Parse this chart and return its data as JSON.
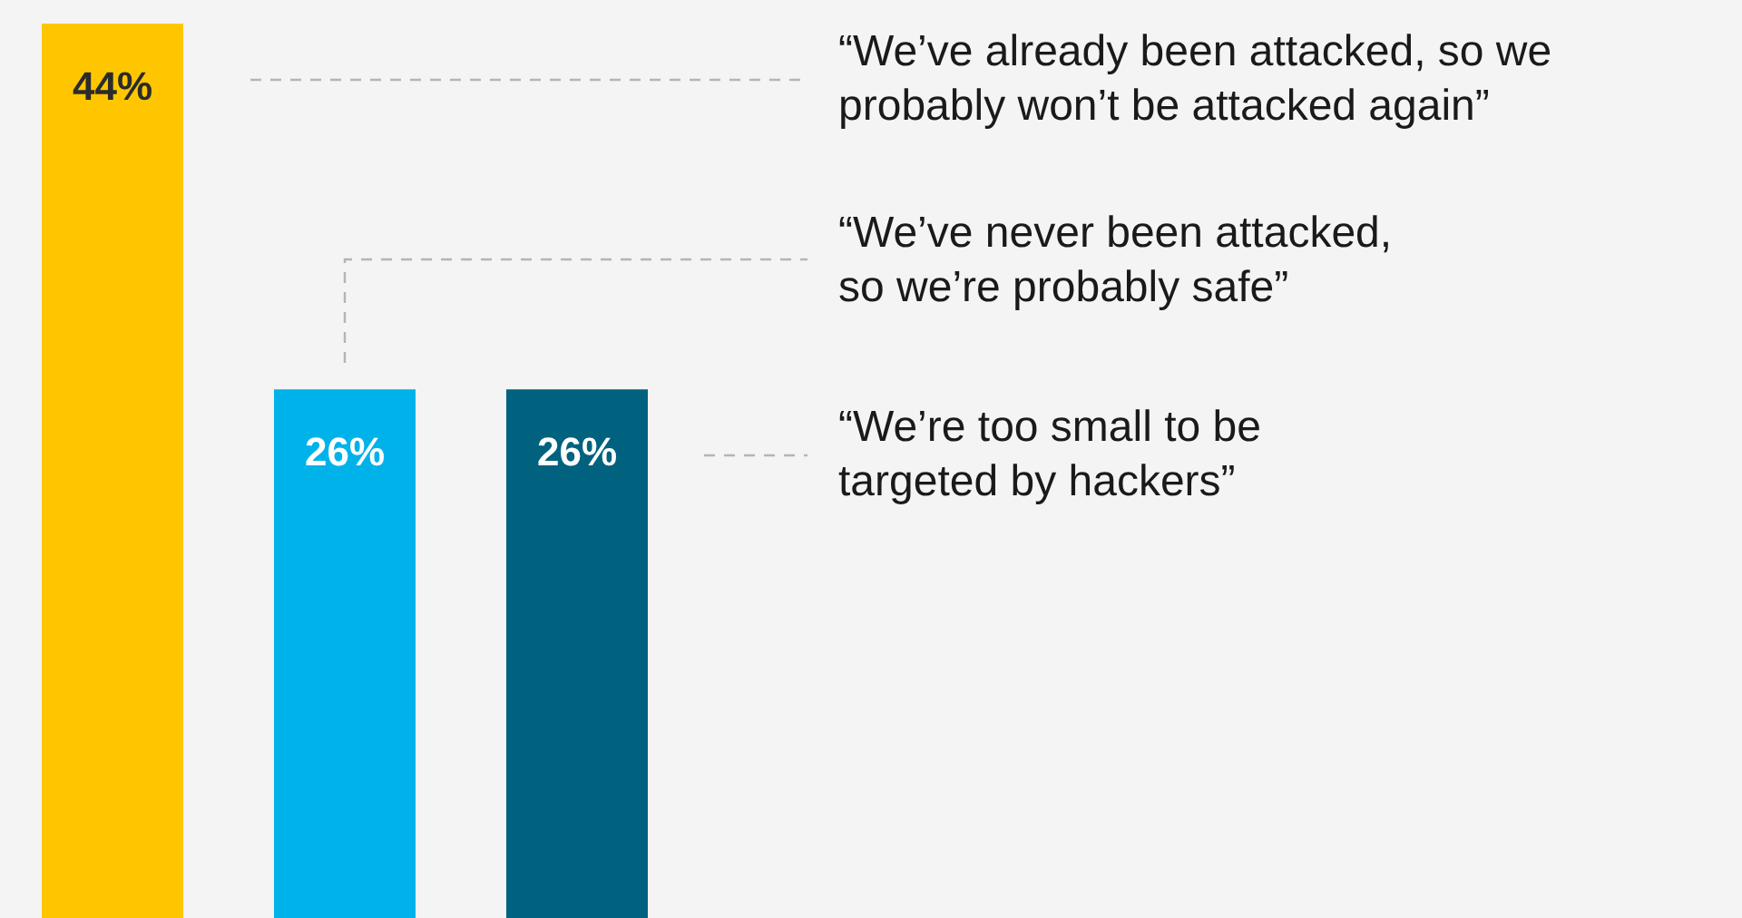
{
  "chart_data": {
    "type": "bar",
    "categories": [
      null,
      null,
      null
    ],
    "values": [
      44,
      26,
      26
    ],
    "colors": [
      "#ffc600",
      "#00b2ea",
      "#00627f"
    ],
    "value_labels": [
      "44%",
      "26%",
      "26%"
    ],
    "annotations": [
      "“We’ve already been attacked, so we\nprobably won’t be attacked again”",
      "“We’ve never been attacked,\nso we’re probably safe”",
      "“We’re too small to be\ntargeted by hackers”"
    ]
  }
}
